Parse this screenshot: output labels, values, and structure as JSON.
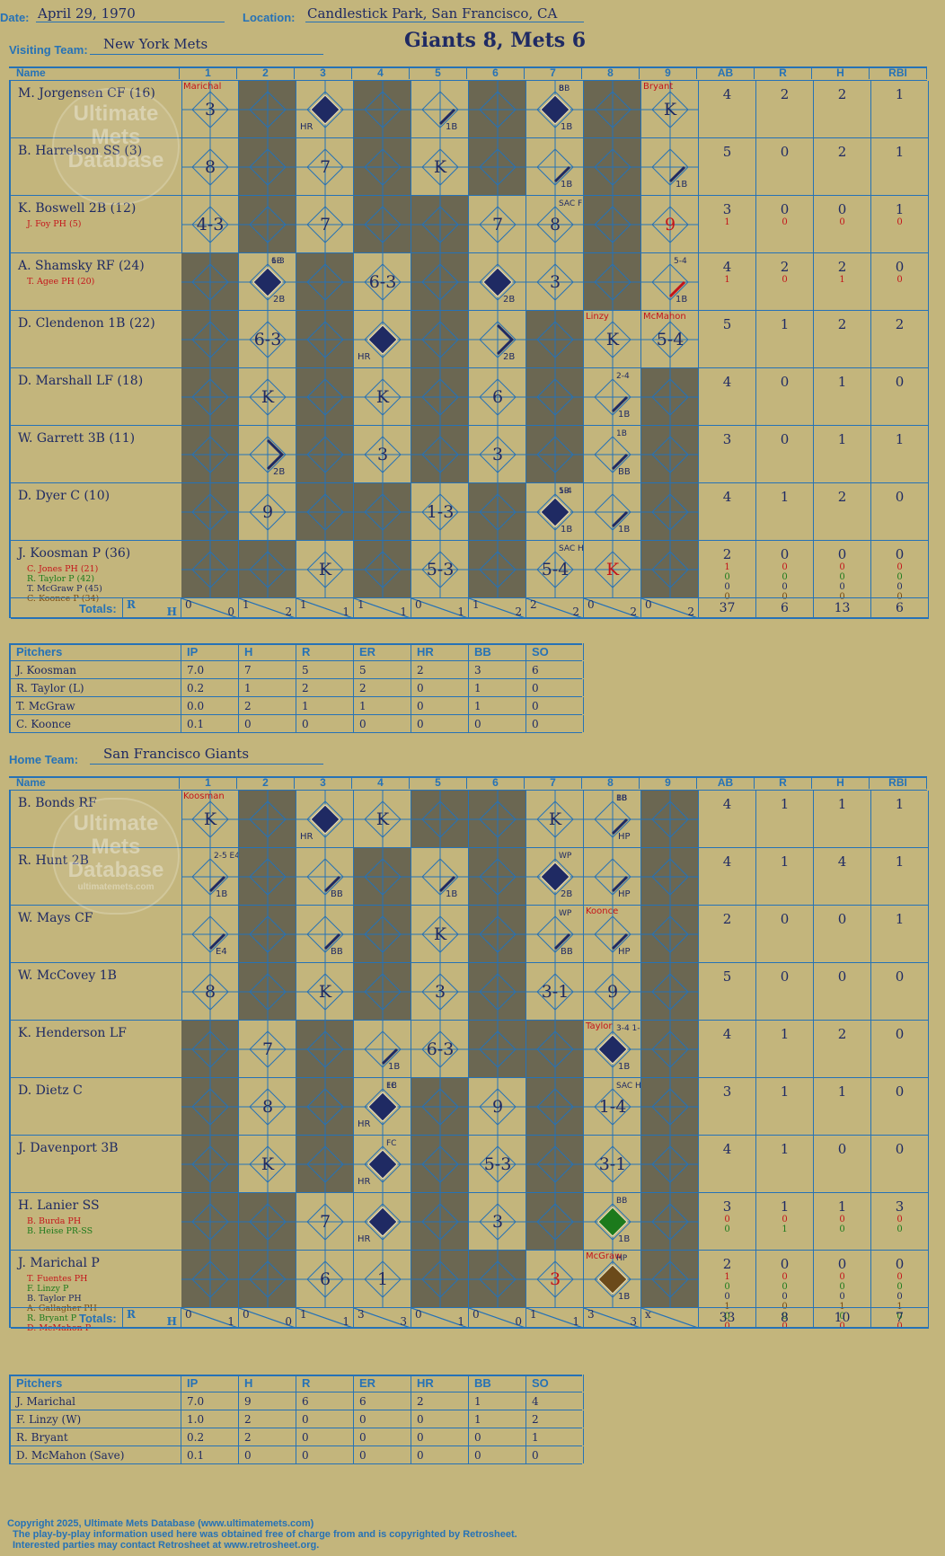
{
  "header": {
    "date_label": "Date:",
    "date": "April 29, 1970",
    "location_label": "Location:",
    "location": "Candlestick Park, San Francisco, CA",
    "score_title": "Giants 8, Mets 6"
  },
  "visiting": {
    "team_label": "Visiting Team:",
    "team": "New York Mets",
    "players": [
      {
        "name": "M. Jorgensen CF (16)",
        "subs": [],
        "stats": [
          {
            "ab": "4",
            "r": "2",
            "h": "2",
            "rbi": "1"
          }
        ]
      },
      {
        "name": "B. Harrelson SS (3)",
        "subs": [],
        "stats": [
          {
            "ab": "5",
            "r": "0",
            "h": "2",
            "rbi": "1"
          }
        ]
      },
      {
        "name": "K. Boswell 2B (12)",
        "subs": [
          {
            "name": "J. Foy PH (5)",
            "color": "#c4141a"
          }
        ],
        "stats": [
          {
            "ab": "3",
            "r": "0",
            "h": "0",
            "rbi": "1"
          },
          {
            "ab": "1",
            "r": "0",
            "h": "0",
            "rbi": "0",
            "color": "#c4141a"
          }
        ]
      },
      {
        "name": "A. Shamsky RF (24)",
        "subs": [
          {
            "name": "T. Agee PH (20)",
            "color": "#c4141a"
          }
        ],
        "stats": [
          {
            "ab": "4",
            "r": "2",
            "h": "2",
            "rbi": "0"
          },
          {
            "ab": "1",
            "r": "0",
            "h": "1",
            "rbi": "0",
            "color": "#c4141a"
          }
        ]
      },
      {
        "name": "D. Clendenon 1B (22)",
        "subs": [],
        "stats": [
          {
            "ab": "5",
            "r": "1",
            "h": "2",
            "rbi": "2"
          }
        ]
      },
      {
        "name": "D. Marshall LF (18)",
        "subs": [],
        "stats": [
          {
            "ab": "4",
            "r": "0",
            "h": "1",
            "rbi": "0"
          }
        ]
      },
      {
        "name": "W. Garrett 3B (11)",
        "subs": [],
        "stats": [
          {
            "ab": "3",
            "r": "0",
            "h": "1",
            "rbi": "1"
          }
        ]
      },
      {
        "name": "D. Dyer C (10)",
        "subs": [],
        "stats": [
          {
            "ab": "4",
            "r": "1",
            "h": "2",
            "rbi": "0"
          }
        ]
      },
      {
        "name": "J. Koosman P (36)",
        "subs": [
          {
            "name": "C. Jones PH (21)",
            "color": "#c4141a"
          },
          {
            "name": "R. Taylor P (42)",
            "color": "#1c7a1c"
          },
          {
            "name": "T. McGraw P (45)",
            "color": "#1f2a63"
          },
          {
            "name": "C. Koonce P (34)",
            "color": "#7a4a10"
          }
        ],
        "stats": [
          {
            "ab": "2",
            "r": "0",
            "h": "0",
            "rbi": "0"
          },
          {
            "ab": "1",
            "r": "0",
            "h": "0",
            "rbi": "0",
            "color": "#c4141a"
          },
          {
            "ab": "0",
            "r": "0",
            "h": "0",
            "rbi": "0",
            "color": "#1c7a1c"
          },
          {
            "ab": "0",
            "r": "0",
            "h": "0",
            "rbi": "0",
            "color": "#1f2a63"
          },
          {
            "ab": "0",
            "r": "0",
            "h": "0",
            "rbi": "0",
            "color": "#7a4a10"
          }
        ]
      }
    ],
    "totals_label": "Totals:",
    "totals_rh": [
      "R",
      "H"
    ],
    "inning_totals": [
      [
        "0",
        "0"
      ],
      [
        "1",
        "2"
      ],
      [
        "1",
        "1"
      ],
      [
        "1",
        "1"
      ],
      [
        "0",
        "1"
      ],
      [
        "1",
        "2"
      ],
      [
        "2",
        "2"
      ],
      [
        "0",
        "2"
      ],
      [
        "0",
        "2"
      ]
    ],
    "totals": {
      "ab": "37",
      "r": "6",
      "h": "13",
      "rbi": "6"
    },
    "pitchers": [
      {
        "name": "J. Koosman",
        "ip": "7.0",
        "h": "7",
        "r": "5",
        "er": "5",
        "hr": "2",
        "bb": "3",
        "so": "6"
      },
      {
        "name": "R. Taylor (L)",
        "ip": "0.2",
        "h": "1",
        "r": "2",
        "er": "2",
        "hr": "0",
        "bb": "1",
        "so": "0"
      },
      {
        "name": "T. McGraw",
        "ip": "0.0",
        "h": "2",
        "r": "1",
        "er": "1",
        "hr": "0",
        "bb": "1",
        "so": "0"
      },
      {
        "name": "C. Koonce",
        "ip": "0.1",
        "h": "0",
        "r": "0",
        "er": "0",
        "hr": "0",
        "bb": "0",
        "so": "0"
      }
    ]
  },
  "home": {
    "team_label": "Home Team:",
    "team": "San Francisco Giants",
    "players": [
      {
        "name": "B. Bonds RF",
        "subs": [],
        "stats": [
          {
            "ab": "4",
            "r": "1",
            "h": "1",
            "rbi": "1"
          }
        ]
      },
      {
        "name": "R. Hunt 2B",
        "subs": [],
        "stats": [
          {
            "ab": "4",
            "r": "1",
            "h": "4",
            "rbi": "1"
          }
        ]
      },
      {
        "name": "W. Mays CF",
        "subs": [],
        "stats": [
          {
            "ab": "2",
            "r": "0",
            "h": "0",
            "rbi": "1"
          }
        ]
      },
      {
        "name": "W. McCovey 1B",
        "subs": [],
        "stats": [
          {
            "ab": "5",
            "r": "0",
            "h": "0",
            "rbi": "0"
          }
        ]
      },
      {
        "name": "K. Henderson LF",
        "subs": [],
        "stats": [
          {
            "ab": "4",
            "r": "1",
            "h": "2",
            "rbi": "0"
          }
        ]
      },
      {
        "name": "D. Dietz C",
        "subs": [],
        "stats": [
          {
            "ab": "3",
            "r": "1",
            "h": "1",
            "rbi": "0"
          }
        ]
      },
      {
        "name": "J. Davenport 3B",
        "subs": [],
        "stats": [
          {
            "ab": "4",
            "r": "1",
            "h": "0",
            "rbi": "0"
          }
        ]
      },
      {
        "name": "H. Lanier SS",
        "subs": [
          {
            "name": "B. Burda PH",
            "color": "#c4141a"
          },
          {
            "name": "B. Heise PR-SS",
            "color": "#1c7a1c"
          }
        ],
        "stats": [
          {
            "ab": "3",
            "r": "1",
            "h": "1",
            "rbi": "3"
          },
          {
            "ab": "0",
            "r": "0",
            "h": "0",
            "rbi": "0",
            "color": "#c4141a"
          },
          {
            "ab": "0",
            "r": "1",
            "h": "0",
            "rbi": "0",
            "color": "#1c7a1c"
          }
        ]
      },
      {
        "name": "J. Marichal P",
        "subs": [
          {
            "name": "T. Fuentes PH",
            "color": "#c4141a"
          },
          {
            "name": "F. Linzy P",
            "color": "#1c7a1c"
          },
          {
            "name": "B. Taylor PH",
            "color": "#1f2a63"
          },
          {
            "name": "A. Gallagher PH",
            "color": "#7a4a10"
          },
          {
            "name": "R. Bryant P",
            "color": "#1c7a1c"
          },
          {
            "name": "D. McMahon P",
            "color": "#c4141a"
          }
        ],
        "stats": [
          {
            "ab": "2",
            "r": "0",
            "h": "0",
            "rbi": "0"
          },
          {
            "ab": "1",
            "r": "0",
            "h": "0",
            "rbi": "0",
            "color": "#c4141a"
          },
          {
            "ab": "0",
            "r": "0",
            "h": "0",
            "rbi": "0",
            "color": "#1c7a1c"
          },
          {
            "ab": "0",
            "r": "0",
            "h": "0",
            "rbi": "0",
            "color": "#1f2a63"
          },
          {
            "ab": "1",
            "r": "0",
            "h": "1",
            "rbi": "1",
            "color": "#7a4a10"
          },
          {
            "ab": "0",
            "r": "0",
            "h": "0",
            "rbi": "0",
            "color": "#1c7a1c"
          },
          {
            "ab": "0",
            "r": "0",
            "h": "0",
            "rbi": "0",
            "color": "#c4141a"
          }
        ]
      }
    ],
    "totals_label": "Totals:",
    "totals_rh": [
      "R",
      "H"
    ],
    "inning_totals": [
      [
        "0",
        "1"
      ],
      [
        "0",
        "0"
      ],
      [
        "1",
        "1"
      ],
      [
        "3",
        "3"
      ],
      [
        "0",
        "1"
      ],
      [
        "0",
        "0"
      ],
      [
        "1",
        "1"
      ],
      [
        "3",
        "3"
      ],
      [
        "x",
        ""
      ]
    ],
    "totals": {
      "ab": "33",
      "r": "8",
      "h": "10",
      "rbi": "7"
    },
    "pitchers": [
      {
        "name": "J. Marichal",
        "ip": "7.0",
        "h": "9",
        "r": "6",
        "er": "6",
        "hr": "2",
        "bb": "1",
        "so": "4"
      },
      {
        "name": "F. Linzy (W)",
        "ip": "1.0",
        "h": "2",
        "r": "0",
        "er": "0",
        "hr": "0",
        "bb": "1",
        "so": "2"
      },
      {
        "name": "R. Bryant",
        "ip": "0.2",
        "h": "2",
        "r": "0",
        "er": "0",
        "hr": "0",
        "bb": "0",
        "so": "1"
      },
      {
        "name": "D. McMahon (Save)",
        "ip": "0.1",
        "h": "0",
        "r": "0",
        "er": "0",
        "hr": "0",
        "bb": "0",
        "so": "0"
      }
    ]
  },
  "grid_headers": {
    "name": "Name",
    "innings": [
      "1",
      "2",
      "3",
      "4",
      "5",
      "6",
      "7",
      "8",
      "9"
    ],
    "stats": [
      "AB",
      "R",
      "H",
      "RBI"
    ]
  },
  "pitcher_headers": [
    "Pitchers",
    "IP",
    "H",
    "R",
    "ER",
    "HR",
    "BB",
    "SO"
  ],
  "watermark": [
    "Ultimate",
    "Mets",
    "Database"
  ],
  "watermark_url": "ultimatemets.com",
  "footer": [
    "Copyright 2025, Ultimate Mets Database (www.ultimatemets.com)",
    "The play-by-play information used here was obtained free of charge from and is copyrighted by Retrosheet.",
    "Interested parties may contact Retrosheet at www.retrosheet.org."
  ],
  "colors": {
    "background": "#c3b57c",
    "grid": "#2672b6",
    "ink": "#1f2a63",
    "dark_cell": "#6b6752",
    "red": "#c4141a"
  },
  "plays": {
    "visiting": [
      [
        "3|Marichal",
        "",
        "HR|run",
        "",
        "1B",
        "",
        "1B|run|8|BB",
        "",
        "K|Bryant"
      ],
      [
        "8",
        "",
        "7",
        "",
        "K",
        "",
        "1B",
        "",
        "1B"
      ],
      [
        "4-3",
        "",
        "7",
        "",
        "",
        "7",
        "8|SAC FLY",
        "",
        "9|red"
      ],
      [
        "",
        "2B|run|6-3|1B",
        "",
        "6-3",
        "",
        "2B|run",
        "3",
        "",
        "1B|red|5-4"
      ],
      [
        "",
        "6-3",
        "",
        "HR|run",
        "",
        "2B",
        "",
        "K|Linzy",
        "5-4|McMahon"
      ],
      [
        "",
        "K",
        "",
        "K",
        "",
        "6",
        "",
        "1B|2-4",
        ""
      ],
      [
        "",
        "2B",
        "",
        "3",
        "",
        "3",
        "",
        "BB|1B",
        ""
      ],
      [
        "",
        "9",
        "",
        "",
        "1-3",
        "",
        "1B|run|5-4|1B",
        "1B",
        ""
      ],
      [
        "",
        "",
        "K",
        "",
        "5-3",
        "",
        "5-4|SAC HIT",
        "K|red",
        ""
      ]
    ],
    "home": [
      [
        "K|Koosman",
        "",
        "HR|run",
        "K",
        "",
        "",
        "K",
        "HP|1B|BB",
        ""
      ],
      [
        "1B|2-5 E4",
        "",
        "BB",
        "",
        "1B",
        "",
        "2B|run|WP",
        "HP",
        ""
      ],
      [
        "E4",
        "",
        "BB",
        "",
        "K",
        "",
        "BB|WP",
        "HP|Koonce",
        ""
      ],
      [
        "8",
        "",
        "K",
        "",
        "3",
        "",
        "3-1",
        "9",
        ""
      ],
      [
        "",
        "7",
        "",
        "1B",
        "6-3",
        "",
        "",
        "1B|run|Taylor|3-4 1-4",
        ""
      ],
      [
        "",
        "8",
        "",
        "HR|run|FC|1B",
        "",
        "9",
        "",
        "1-4|SAC HIT",
        ""
      ],
      [
        "",
        "K",
        "",
        "HR|run|FC",
        "",
        "5-3",
        "",
        "3-1",
        ""
      ],
      [
        "",
        "",
        "7",
        "HR|run",
        "",
        "3",
        "",
        "1B|green|BB",
        ""
      ],
      [
        "",
        "",
        "6",
        "1",
        "",
        "",
        "3|red",
        "1B|brown|McGraw|HP",
        ""
      ]
    ]
  }
}
